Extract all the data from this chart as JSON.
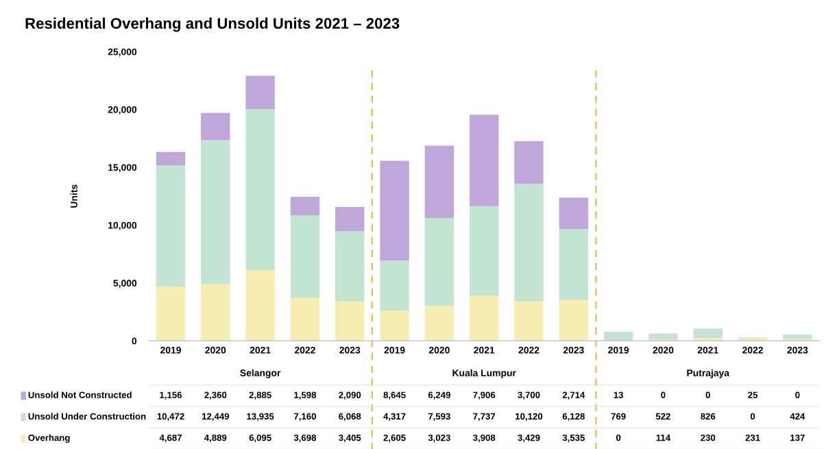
{
  "chart_data": {
    "type": "bar",
    "title": "Residential Overhang and Unsold Units 2021 – 2023",
    "ylabel": "Units",
    "categories": [
      "2019",
      "2020",
      "2021",
      "2022",
      "2023",
      "2019",
      "2020",
      "2021",
      "2022",
      "2023",
      "2019",
      "2020",
      "2021",
      "2022",
      "2023"
    ],
    "annotations": [
      "Selangor",
      "Kuala Lumpur",
      "Putrajaya"
    ],
    "stacked": true,
    "legend": "bottom",
    "ylim": [
      0,
      25000
    ],
    "yticks": [
      {
        "value": 0,
        "label": "0"
      },
      {
        "value": 5000,
        "label": "5,000"
      },
      {
        "value": 10000,
        "label": "10,000"
      },
      {
        "value": 15000,
        "label": "15,000"
      },
      {
        "value": 20000,
        "label": "20,000"
      },
      {
        "value": 25000,
        "label": "25,000"
      }
    ],
    "series": [
      {
        "name": "Overhang",
        "color": "#f6eeb0",
        "values": [
          4687,
          4889,
          6095,
          3698,
          3405,
          2605,
          3023,
          3908,
          3429,
          3535,
          0,
          114,
          230,
          231,
          137
        ],
        "value_labels": [
          "4,687",
          "4,889",
          "6,095",
          "3,698",
          "3,405",
          "2,605",
          "3,023",
          "3,908",
          "3,429",
          "3,535",
          "0",
          "114",
          "230",
          "231",
          "137"
        ]
      },
      {
        "name": "Unsold Under Construction",
        "color": "#c3e4d2",
        "values": [
          10472,
          12449,
          13935,
          7160,
          6068,
          4317,
          7593,
          7737,
          10120,
          6128,
          769,
          522,
          826,
          0,
          424
        ],
        "value_labels": [
          "10,472",
          "12,449",
          "13,935",
          "7,160",
          "6,068",
          "4,317",
          "7,593",
          "7,737",
          "10,120",
          "6,128",
          "769",
          "522",
          "826",
          "0",
          "424"
        ]
      },
      {
        "name": "Unsold Not Constructed",
        "color": "#bfa7da",
        "values": [
          1156,
          2360,
          2885,
          1598,
          2090,
          8645,
          6249,
          7906,
          3700,
          2714,
          13,
          0,
          0,
          25,
          0
        ],
        "value_labels": [
          "1,156",
          "2,360",
          "2,885",
          "1,598",
          "2,090",
          "8,645",
          "6,249",
          "7,906",
          "3,700",
          "2,714",
          "13",
          "0",
          "0",
          "25",
          "0"
        ]
      }
    ]
  }
}
